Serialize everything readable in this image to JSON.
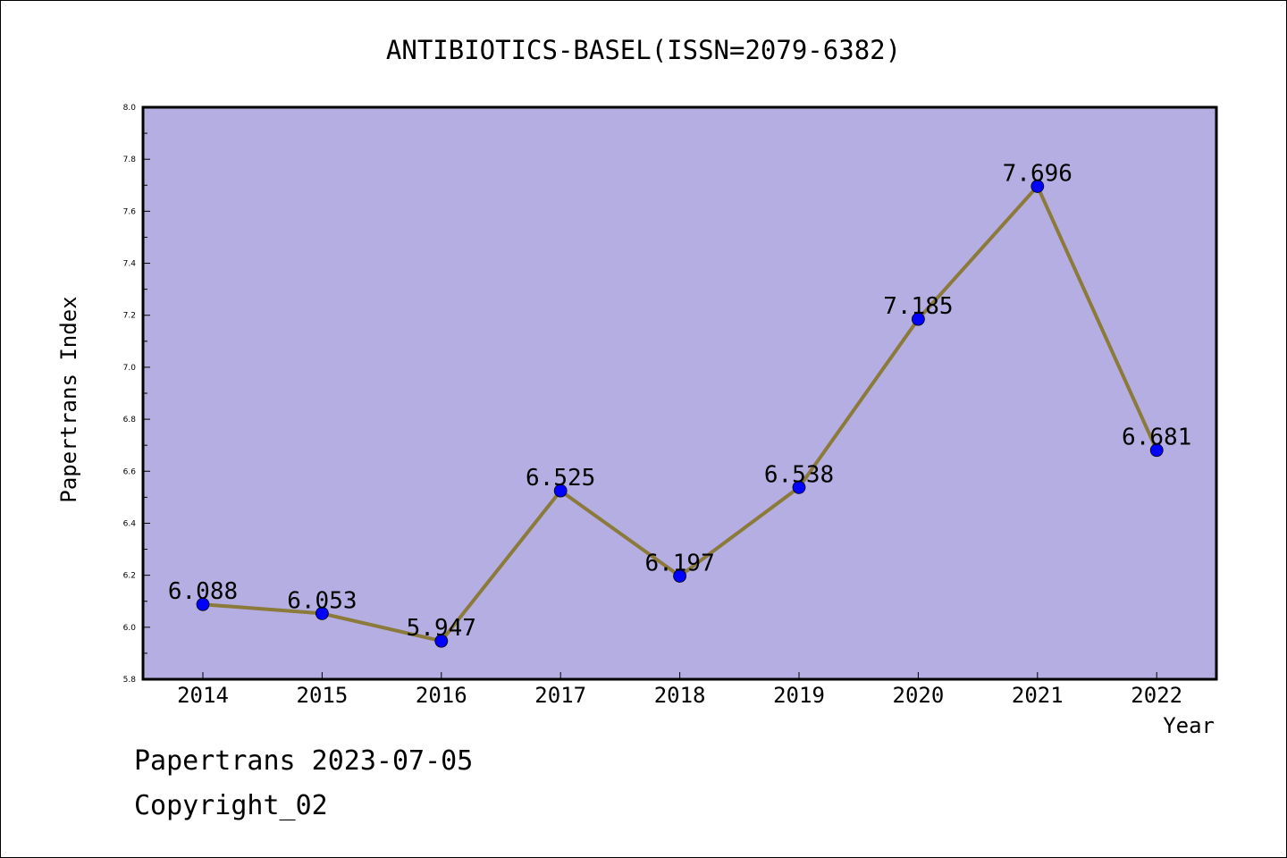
{
  "chart_data": {
    "type": "line",
    "title": "ANTIBIOTICS-BASEL(ISSN=2079-6382)",
    "xlabel": "Year",
    "ylabel": "Papertrans Index",
    "categories": [
      "2014",
      "2015",
      "2016",
      "2017",
      "2018",
      "2019",
      "2020",
      "2021",
      "2022"
    ],
    "values": [
      6.088,
      6.053,
      5.947,
      6.525,
      6.197,
      6.538,
      7.185,
      7.696,
      6.681
    ],
    "value_labels": [
      "6.088",
      "6.053",
      "5.947",
      "6.525",
      "6.197",
      "6.538",
      "7.185",
      "7.696",
      "6.681"
    ],
    "ylim": [
      5.8,
      8.0
    ],
    "yticks": [
      "5.8",
      "6.0",
      "6.2",
      "6.4",
      "6.6",
      "6.8",
      "7.0",
      "7.2",
      "7.4",
      "7.6",
      "7.8",
      "8.0"
    ],
    "grid": false,
    "legend": "none",
    "colors": {
      "plot_background": "#b4aee2",
      "line": "#8b7a3a",
      "marker": "#0000ff"
    }
  },
  "footer": {
    "source": "Papertrans 2023-07-05",
    "copyright": "Copyright_02"
  }
}
